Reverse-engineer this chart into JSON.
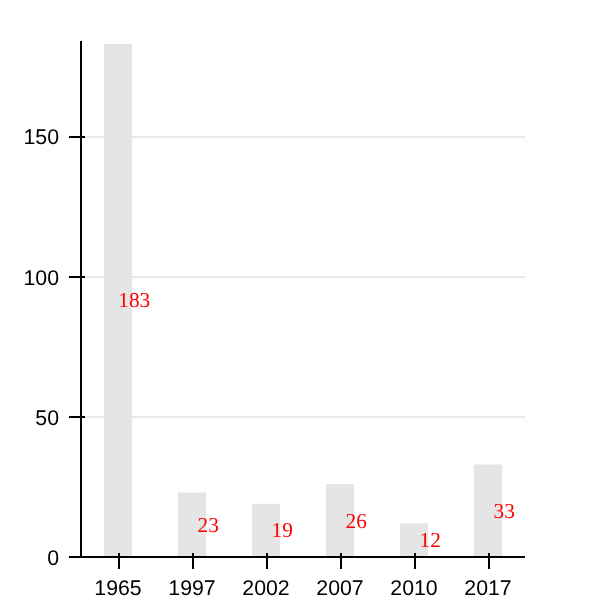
{
  "chart_data": {
    "type": "bar",
    "categories": [
      "1965",
      "1997",
      "2002",
      "2007",
      "2010",
      "2017"
    ],
    "values": [
      183,
      23,
      19,
      26,
      12,
      33
    ],
    "color": "#e5e5e5",
    "ylim": [
      0,
      184
    ],
    "yticks": [
      0,
      50,
      100,
      150
    ],
    "grid": "y",
    "data_labels": true
  }
}
